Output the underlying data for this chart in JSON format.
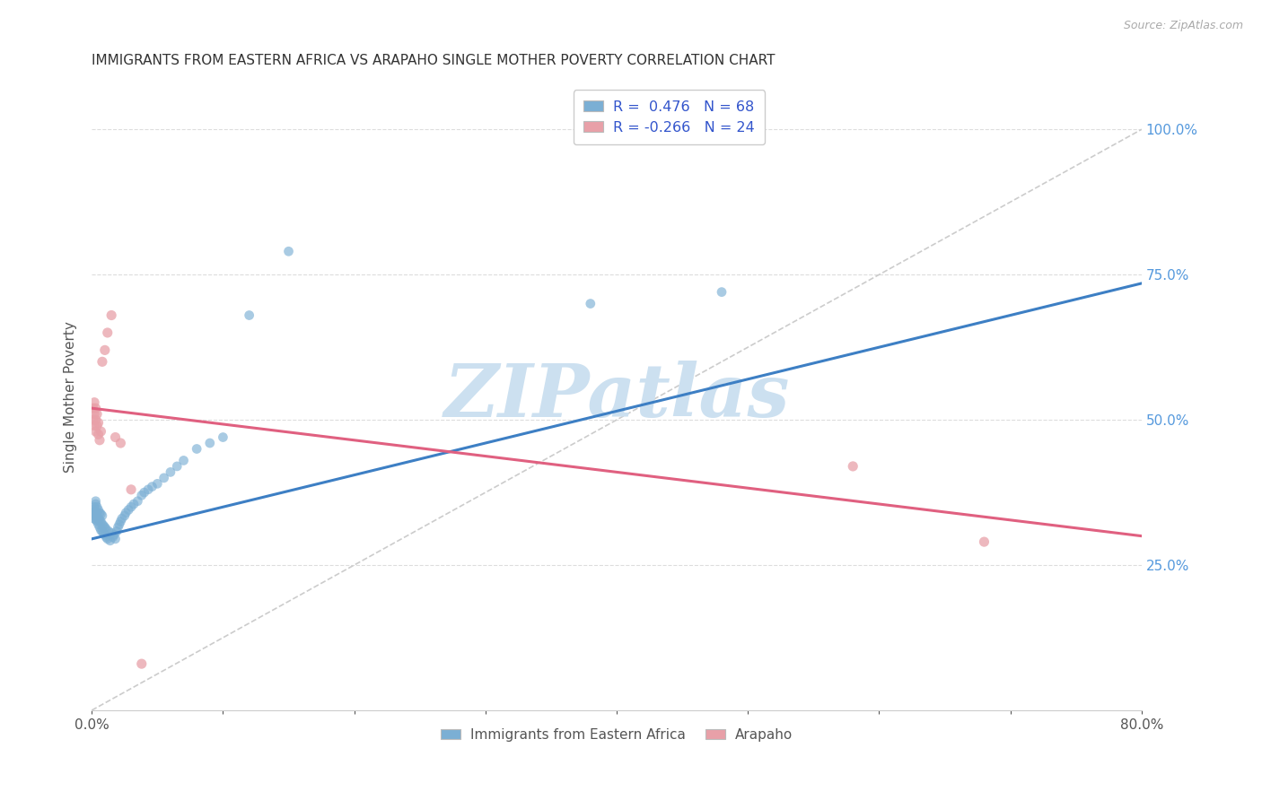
{
  "title": "IMMIGRANTS FROM EASTERN AFRICA VS ARAPAHO SINGLE MOTHER POVERTY CORRELATION CHART",
  "source": "Source: ZipAtlas.com",
  "xlabel_blue": "Immigrants from Eastern Africa",
  "xlabel_pink": "Arapaho",
  "ylabel": "Single Mother Poverty",
  "xmin": 0.0,
  "xmax": 0.8,
  "ymin": 0.0,
  "ymax": 1.08,
  "yticks": [
    0.25,
    0.5,
    0.75,
    1.0
  ],
  "ytick_labels": [
    "25.0%",
    "50.0%",
    "75.0%",
    "100.0%"
  ],
  "r_blue": 0.476,
  "n_blue": 68,
  "r_pink": -0.266,
  "n_pink": 24,
  "blue_color": "#7bafd4",
  "pink_color": "#e8a0a8",
  "blue_line_color": "#3d7fc4",
  "pink_line_color": "#e06080",
  "dashed_line_color": "#cccccc",
  "title_color": "#333333",
  "axis_label_color": "#555555",
  "right_tick_color": "#5599dd",
  "background_color": "#ffffff",
  "watermark_color": "#cce0f0",
  "watermark_text": "ZIPatlas",
  "blue_scatter_x": [
    0.001,
    0.001,
    0.001,
    0.002,
    0.002,
    0.002,
    0.002,
    0.003,
    0.003,
    0.003,
    0.003,
    0.003,
    0.004,
    0.004,
    0.004,
    0.004,
    0.005,
    0.005,
    0.005,
    0.006,
    0.006,
    0.006,
    0.007,
    0.007,
    0.007,
    0.008,
    0.008,
    0.008,
    0.009,
    0.009,
    0.01,
    0.01,
    0.011,
    0.011,
    0.012,
    0.013,
    0.014,
    0.015,
    0.016,
    0.017,
    0.018,
    0.019,
    0.02,
    0.021,
    0.022,
    0.023,
    0.025,
    0.026,
    0.028,
    0.03,
    0.032,
    0.035,
    0.038,
    0.04,
    0.043,
    0.046,
    0.05,
    0.055,
    0.06,
    0.065,
    0.07,
    0.08,
    0.09,
    0.1,
    0.12,
    0.15,
    0.38,
    0.48
  ],
  "blue_scatter_y": [
    0.335,
    0.34,
    0.345,
    0.33,
    0.338,
    0.342,
    0.35,
    0.328,
    0.335,
    0.342,
    0.355,
    0.36,
    0.325,
    0.332,
    0.34,
    0.35,
    0.32,
    0.33,
    0.345,
    0.315,
    0.328,
    0.34,
    0.31,
    0.325,
    0.338,
    0.308,
    0.32,
    0.335,
    0.305,
    0.318,
    0.302,
    0.315,
    0.298,
    0.312,
    0.295,
    0.308,
    0.292,
    0.305,
    0.298,
    0.302,
    0.295,
    0.308,
    0.315,
    0.32,
    0.325,
    0.33,
    0.335,
    0.34,
    0.345,
    0.35,
    0.355,
    0.36,
    0.37,
    0.375,
    0.38,
    0.385,
    0.39,
    0.4,
    0.41,
    0.42,
    0.43,
    0.45,
    0.46,
    0.47,
    0.68,
    0.79,
    0.7,
    0.72
  ],
  "pink_scatter_x": [
    0.001,
    0.001,
    0.002,
    0.002,
    0.002,
    0.003,
    0.003,
    0.003,
    0.004,
    0.004,
    0.005,
    0.005,
    0.006,
    0.007,
    0.008,
    0.01,
    0.012,
    0.015,
    0.018,
    0.022,
    0.03,
    0.038,
    0.58,
    0.68
  ],
  "pink_scatter_y": [
    0.5,
    0.52,
    0.49,
    0.51,
    0.53,
    0.48,
    0.5,
    0.52,
    0.49,
    0.51,
    0.475,
    0.495,
    0.465,
    0.48,
    0.6,
    0.62,
    0.65,
    0.68,
    0.47,
    0.46,
    0.38,
    0.08,
    0.42,
    0.29
  ],
  "blue_regline_x": [
    0.0,
    0.8
  ],
  "blue_regline_y": [
    0.295,
    0.735
  ],
  "pink_regline_x": [
    0.0,
    0.8
  ],
  "pink_regline_y": [
    0.52,
    0.3
  ],
  "dash_line_x": [
    0.0,
    0.8
  ],
  "dash_line_y": [
    0.0,
    1.0
  ]
}
